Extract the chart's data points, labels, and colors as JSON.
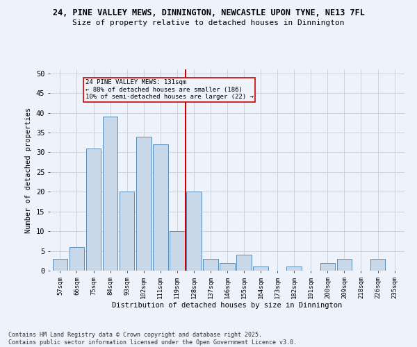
{
  "title1": "24, PINE VALLEY MEWS, DINNINGTON, NEWCASTLE UPON TYNE, NE13 7FL",
  "title2": "Size of property relative to detached houses in Dinnington",
  "xlabel": "Distribution of detached houses by size in Dinnington",
  "ylabel": "Number of detached properties",
  "categories": [
    "57sqm",
    "66sqm",
    "75sqm",
    "84sqm",
    "93sqm",
    "102sqm",
    "111sqm",
    "119sqm",
    "128sqm",
    "137sqm",
    "146sqm",
    "155sqm",
    "164sqm",
    "173sqm",
    "182sqm",
    "191sqm",
    "200sqm",
    "209sqm",
    "218sqm",
    "226sqm",
    "235sqm"
  ],
  "values": [
    3,
    6,
    31,
    39,
    20,
    34,
    32,
    10,
    20,
    3,
    2,
    4,
    1,
    0,
    1,
    0,
    2,
    3,
    0,
    3,
    0
  ],
  "bar_color": "#c8d8e8",
  "bar_edge_color": "#5b8db8",
  "vline_color": "#cc0000",
  "annotation_text": "24 PINE VALLEY MEWS: 131sqm\n← 88% of detached houses are smaller (186)\n10% of semi-detached houses are larger (22) →",
  "annotation_box_color": "#cc0000",
  "background_color": "#eef2fb",
  "ylim": [
    0,
    51
  ],
  "yticks": [
    0,
    5,
    10,
    15,
    20,
    25,
    30,
    35,
    40,
    45,
    50
  ],
  "footnote": "Contains HM Land Registry data © Crown copyright and database right 2025.\nContains public sector information licensed under the Open Government Licence v3.0.",
  "grid_color": "#c8ccd8"
}
